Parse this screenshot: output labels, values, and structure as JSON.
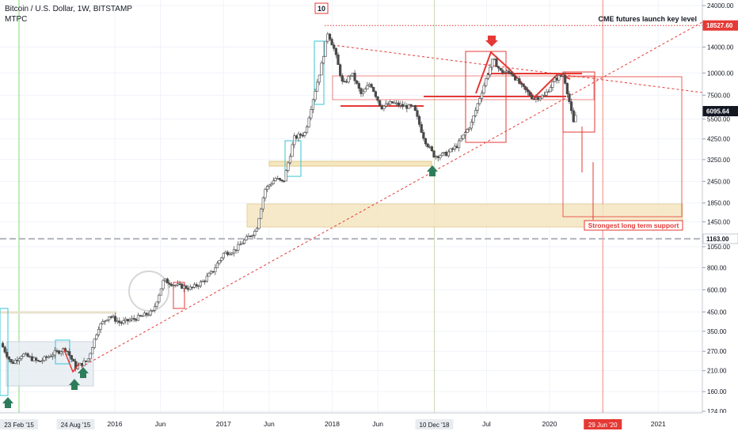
{
  "header": {
    "symbol": "Bitcoin / U.S. Dollar, 1W, BITSTAMP",
    "indicator": "MTPC",
    "count_badge": "10"
  },
  "colors": {
    "bull": "#4a4a4a",
    "bear": "#888888",
    "red": "#e53935",
    "zone_fill": "#f5e6c0",
    "cyan": "#34c6d4",
    "arrow_green": "#2e7d5a",
    "dashed_white": "#ffffff"
  },
  "annotations": {
    "cme_label": "CME futures launch key level",
    "support_label": "Strongest long term support"
  },
  "chart_data": {
    "type": "candlestick",
    "scale": "log",
    "ylim": [
      120,
      26000
    ],
    "y_ticks": [
      24000,
      14000,
      10000,
      7500,
      5500,
      4250,
      3250,
      2450,
      1850,
      1450,
      1050,
      800,
      600,
      450,
      350,
      270,
      210,
      160,
      124
    ],
    "y_tick_labels": [
      "24000.00",
      "14000.00",
      "10000.00",
      "7500.00",
      "5500.00",
      "4250.00",
      "3250.00",
      "2450.00",
      "1850.00",
      "1450.00",
      "1050.00",
      "800.00",
      "600.00",
      "450.00",
      "350.00",
      "270.00",
      "210.00",
      "160.00",
      "124.00"
    ],
    "x_ticks": [
      {
        "t": 2016.0,
        "label": "2016"
      },
      {
        "t": 2016.42,
        "label": "Jun"
      },
      {
        "t": 2017.0,
        "label": "2017"
      },
      {
        "t": 2017.42,
        "label": "Jun"
      },
      {
        "t": 2018.0,
        "label": "2018"
      },
      {
        "t": 2018.42,
        "label": "Jun"
      },
      {
        "t": 2019.42,
        "label": "Jul"
      },
      {
        "t": 2020.0,
        "label": "2020"
      },
      {
        "t": 2021.0,
        "label": "2021"
      }
    ],
    "x_highlight_labels": [
      {
        "t": 2015.06,
        "label": "23 Feb '15"
      },
      {
        "t": 2015.64,
        "label": "24 Aug '15"
      },
      {
        "t": 2018.94,
        "label": "10 Dec '18"
      },
      {
        "t": 2020.49,
        "label": "29 Jun '20"
      }
    ],
    "price_labels": [
      {
        "value": 18527.6,
        "label": "18527.60",
        "style": "red"
      },
      {
        "value": 6095.64,
        "label": "6095.64",
        "style": "dark"
      },
      {
        "value": 1163.0,
        "label": "1163.00",
        "style": "white"
      }
    ],
    "xlim": [
      2014.95,
      2021.65
    ],
    "price_path": [
      [
        2014.95,
        300
      ],
      [
        2015.05,
        230
      ],
      [
        2015.15,
        260
      ],
      [
        2015.3,
        235
      ],
      [
        2015.45,
        265
      ],
      [
        2015.55,
        280
      ],
      [
        2015.64,
        220
      ],
      [
        2015.75,
        240
      ],
      [
        2015.85,
        370
      ],
      [
        2015.95,
        430
      ],
      [
        2016.05,
        390
      ],
      [
        2016.2,
        415
      ],
      [
        2016.35,
        450
      ],
      [
        2016.45,
        680
      ],
      [
        2016.55,
        640
      ],
      [
        2016.7,
        610
      ],
      [
        2016.8,
        660
      ],
      [
        2016.9,
        760
      ],
      [
        2017.0,
        960
      ],
      [
        2017.1,
        1000
      ],
      [
        2017.2,
        1150
      ],
      [
        2017.3,
        1300
      ],
      [
        2017.38,
        2200
      ],
      [
        2017.48,
        2550
      ],
      [
        2017.55,
        2400
      ],
      [
        2017.65,
        4300
      ],
      [
        2017.75,
        4600
      ],
      [
        2017.82,
        7000
      ],
      [
        2017.9,
        11000
      ],
      [
        2017.96,
        17000
      ],
      [
        2018.02,
        13500
      ],
      [
        2018.1,
        8500
      ],
      [
        2018.18,
        10000
      ],
      [
        2018.27,
        7500
      ],
      [
        2018.35,
        8800
      ],
      [
        2018.45,
        6400
      ],
      [
        2018.55,
        6800
      ],
      [
        2018.65,
        6500
      ],
      [
        2018.75,
        6400
      ],
      [
        2018.85,
        4200
      ],
      [
        2018.94,
        3400
      ],
      [
        2019.05,
        3500
      ],
      [
        2019.15,
        3900
      ],
      [
        2019.28,
        5200
      ],
      [
        2019.38,
        8000
      ],
      [
        2019.48,
        12000
      ],
      [
        2019.55,
        10200
      ],
      [
        2019.65,
        10000
      ],
      [
        2019.75,
        8300
      ],
      [
        2019.85,
        7200
      ],
      [
        2019.95,
        7400
      ],
      [
        2020.05,
        9200
      ],
      [
        2020.13,
        9800
      ],
      [
        2020.18,
        7000
      ],
      [
        2020.22,
        5200
      ],
      [
        2020.25,
        6095.64
      ]
    ]
  }
}
